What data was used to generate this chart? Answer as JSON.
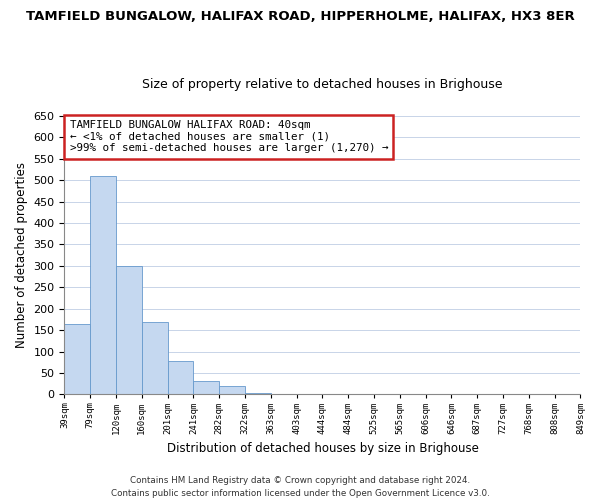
{
  "title": "TAMFIELD BUNGALOW, HALIFAX ROAD, HIPPERHOLME, HALIFAX, HX3 8ER",
  "subtitle": "Size of property relative to detached houses in Brighouse",
  "xlabel": "Distribution of detached houses by size in Brighouse",
  "ylabel": "Number of detached properties",
  "bar_values": [
    165,
    510,
    300,
    168,
    78,
    32,
    20,
    3,
    0,
    0,
    0,
    0,
    0,
    0,
    0,
    0,
    0,
    0,
    0,
    2
  ],
  "categories": [
    "39sqm",
    "79sqm",
    "120sqm",
    "160sqm",
    "201sqm",
    "241sqm",
    "282sqm",
    "322sqm",
    "363sqm",
    "403sqm",
    "444sqm",
    "484sqm",
    "525sqm",
    "565sqm",
    "606sqm",
    "646sqm",
    "687sqm",
    "727sqm",
    "768sqm",
    "808sqm",
    "849sqm"
  ],
  "bar_color_normal": "#c5d8f0",
  "bar_edge_color": "#6699cc",
  "annotation_box_edge_color": "#cc2222",
  "annotation_title": "TAMFIELD BUNGALOW HALIFAX ROAD: 40sqm",
  "annotation_line1": "← <1% of detached houses are smaller (1)",
  "annotation_line2": ">99% of semi-detached houses are larger (1,270) →",
  "ylim": [
    0,
    650
  ],
  "yticks": [
    0,
    50,
    100,
    150,
    200,
    250,
    300,
    350,
    400,
    450,
    500,
    550,
    600,
    650
  ],
  "footer1": "Contains HM Land Registry data © Crown copyright and database right 2024.",
  "footer2": "Contains public sector information licensed under the Open Government Licence v3.0.",
  "background_color": "#ffffff",
  "grid_color": "#c8d4e8",
  "title_fontsize": 9.5,
  "subtitle_fontsize": 9.0,
  "ylabel_fontsize": 8.5,
  "xlabel_fontsize": 8.5
}
